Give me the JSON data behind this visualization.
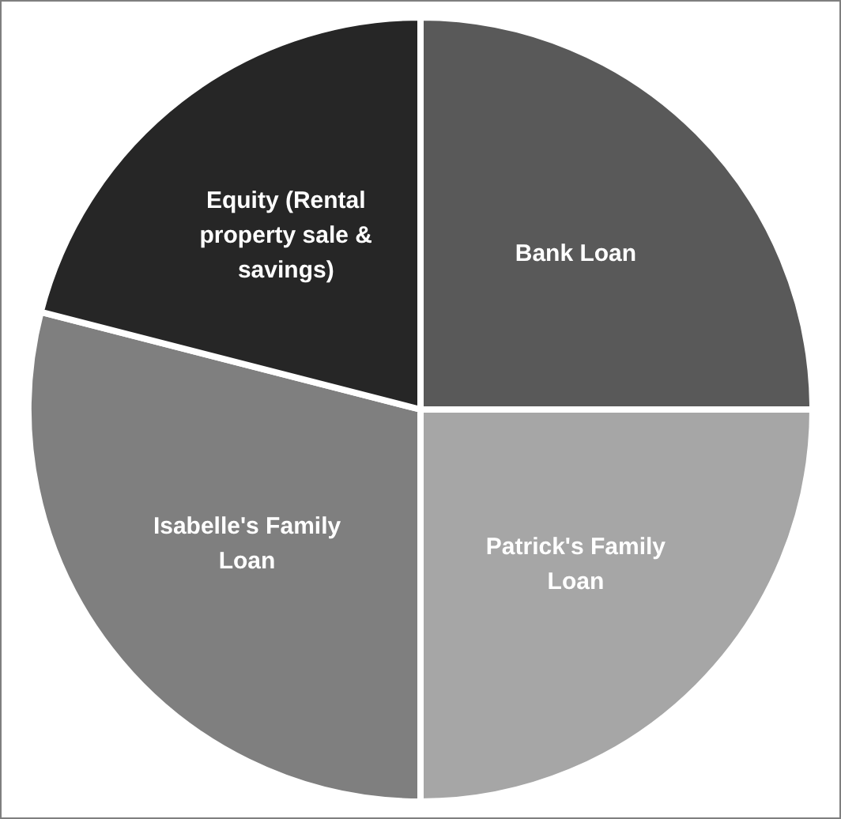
{
  "chart_data": {
    "type": "pie",
    "categories": [
      "Bank Loan",
      "Patrick's Family Loan",
      "Isabelle's Family Loan",
      "Equity (Rental property sale & savings)"
    ],
    "values": [
      25,
      25,
      29,
      21
    ],
    "colors": [
      "#595959",
      "#a6a6a6",
      "#7f7f7f",
      "#262626"
    ],
    "legend": false
  }
}
